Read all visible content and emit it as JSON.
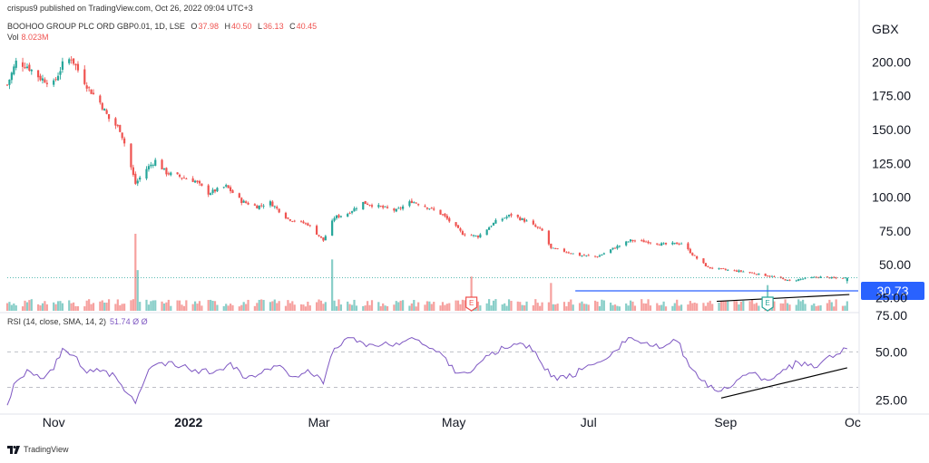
{
  "header": {
    "published": "crispus9 published on TradingView.com, Oct 26, 2022 09:04 UTC+3"
  },
  "symbol": {
    "name": "BOOHOO GROUP PLC ORD GBP0.01, 1D, LSE",
    "ohlc": [
      {
        "label": "O",
        "value": "37.98"
      },
      {
        "label": "H",
        "value": "40.50"
      },
      {
        "label": "L",
        "value": "36.13"
      },
      {
        "label": "C",
        "value": "40.45"
      }
    ]
  },
  "volume": {
    "label": "Vol",
    "value": "8.023M"
  },
  "rsi": {
    "label": "RSI (14, close, SMA, 14, 2)",
    "values": "51.74  Ø  Ø"
  },
  "currency": "GBX",
  "brand": "TradingView",
  "colors": {
    "up": "#26a69a",
    "down": "#ef5350",
    "rsi": "#7e57c2",
    "hline": "#2962ff",
    "trend": "#000000"
  },
  "chart_data": [
    {
      "type": "candlestick",
      "title": "BOOHOO GROUP PLC ORD GBP0.01, 1D, LSE",
      "y_unit": "GBX",
      "ylim": [
        18,
        215
      ],
      "yticks": [
        "200.00",
        "175.00",
        "150.00",
        "125.00",
        "100.00",
        "75.00",
        "50.00",
        "25.00"
      ],
      "xticks": [
        "Nov",
        "2022",
        "Mar",
        "May",
        "Jul",
        "Sep",
        "Oc"
      ],
      "x_range": [
        "2021-10-11",
        "2022-10-31"
      ],
      "close_path": [
        [
          "2021-10-11",
          183
        ],
        [
          "2021-10-15",
          200
        ],
        [
          "2021-10-20",
          197
        ],
        [
          "2021-10-26",
          188
        ],
        [
          "2021-11-01",
          184
        ],
        [
          "2021-11-05",
          198
        ],
        [
          "2021-11-09",
          203
        ],
        [
          "2021-11-12",
          194
        ],
        [
          "2021-11-17",
          180
        ],
        [
          "2021-11-22",
          170
        ],
        [
          "2021-11-26",
          158
        ],
        [
          "2021-12-01",
          150
        ],
        [
          "2021-12-03",
          140
        ],
        [
          "2021-12-08",
          110
        ],
        [
          "2021-12-13",
          121
        ],
        [
          "2021-12-17",
          127
        ],
        [
          "2021-12-22",
          118
        ],
        [
          "2022-01-04",
          112
        ],
        [
          "2022-01-10",
          103
        ],
        [
          "2022-01-18",
          108
        ],
        [
          "2022-01-25",
          97
        ],
        [
          "2022-02-01",
          93
        ],
        [
          "2022-02-07",
          96
        ],
        [
          "2022-02-15",
          84
        ],
        [
          "2022-02-24",
          80
        ],
        [
          "2022-03-03",
          68
        ],
        [
          "2022-03-08",
          85
        ],
        [
          "2022-03-14",
          88
        ],
        [
          "2022-03-21",
          96
        ],
        [
          "2022-03-28",
          93
        ],
        [
          "2022-04-05",
          90
        ],
        [
          "2022-04-12",
          97
        ],
        [
          "2022-04-20",
          92
        ],
        [
          "2022-04-26",
          87
        ],
        [
          "2022-05-05",
          73
        ],
        [
          "2022-05-12",
          71
        ],
        [
          "2022-05-20",
          82
        ],
        [
          "2022-05-27",
          87
        ],
        [
          "2022-06-03",
          82
        ],
        [
          "2022-06-10",
          75
        ],
        [
          "2022-06-14",
          62
        ],
        [
          "2022-06-20",
          60
        ],
        [
          "2022-06-27",
          57
        ],
        [
          "2022-07-05",
          56
        ],
        [
          "2022-07-12",
          62
        ],
        [
          "2022-07-20",
          68
        ],
        [
          "2022-07-28",
          67
        ],
        [
          "2022-08-04",
          65
        ],
        [
          "2022-08-12",
          66
        ],
        [
          "2022-08-18",
          56
        ],
        [
          "2022-08-24",
          48
        ],
        [
          "2022-09-02",
          46
        ],
        [
          "2022-09-09",
          45
        ],
        [
          "2022-09-16",
          43
        ],
        [
          "2022-09-23",
          41
        ],
        [
          "2022-09-30",
          38
        ],
        [
          "2022-10-07",
          40
        ],
        [
          "2022-10-14",
          41
        ],
        [
          "2022-10-21",
          40
        ],
        [
          "2022-10-26",
          40.45
        ]
      ],
      "horizontal_line": {
        "value": 30.73,
        "label": "30.73",
        "from": "2022-06-25"
      },
      "trendline": {
        "from": [
          "2022-08-28",
          23
        ],
        "to": [
          "2022-10-27",
          28
        ]
      },
      "earnings_markers": [
        {
          "date": "2022-05-09",
          "label": "E",
          "kind": "past"
        },
        {
          "date": "2022-09-20",
          "label": "E",
          "kind": "upcoming"
        }
      ]
    },
    {
      "type": "bar",
      "title": "Vol",
      "value": "8.023M",
      "spikes": [
        {
          "date": "2021-12-08",
          "value": 3.6,
          "color": "down"
        },
        {
          "date": "2021-12-09",
          "value": 1.9,
          "color": "up"
        },
        {
          "date": "2022-03-07",
          "value": 2.4,
          "color": "up"
        },
        {
          "date": "2022-05-09",
          "value": 1.6,
          "color": "down"
        },
        {
          "date": "2022-06-14",
          "value": 1.3,
          "color": "down"
        },
        {
          "date": "2022-09-20",
          "value": 1.2,
          "color": "up"
        }
      ]
    },
    {
      "type": "line",
      "title": "RSI (14, close, SMA, 14, 2)",
      "ylim": [
        16,
        68
      ],
      "yticks": [
        "75.00",
        "50.00",
        "25.00"
      ],
      "levels": [
        30,
        50,
        70
      ],
      "series": [
        {
          "name": "RSI",
          "points": [
            [
              "2021-10-11",
              20
            ],
            [
              "2021-10-14",
              32
            ],
            [
              "2021-10-20",
              40
            ],
            [
              "2021-10-26",
              35
            ],
            [
              "2021-11-01",
              40
            ],
            [
              "2021-11-05",
              52
            ],
            [
              "2021-11-10",
              48
            ],
            [
              "2021-11-16",
              38
            ],
            [
              "2021-11-22",
              39
            ],
            [
              "2021-11-29",
              36
            ],
            [
              "2021-12-03",
              28
            ],
            [
              "2021-12-08",
              21
            ],
            [
              "2021-12-14",
              40
            ],
            [
              "2021-12-20",
              44
            ],
            [
              "2022-01-04",
              40
            ],
            [
              "2022-01-12",
              38
            ],
            [
              "2022-01-20",
              44
            ],
            [
              "2022-01-27",
              35
            ],
            [
              "2022-02-03",
              38
            ],
            [
              "2022-02-10",
              42
            ],
            [
              "2022-02-17",
              36
            ],
            [
              "2022-02-24",
              40
            ],
            [
              "2022-03-03",
              32
            ],
            [
              "2022-03-08",
              52
            ],
            [
              "2022-03-14",
              58
            ],
            [
              "2022-03-21",
              55
            ],
            [
              "2022-03-28",
              53
            ],
            [
              "2022-04-05",
              55
            ],
            [
              "2022-04-12",
              58
            ],
            [
              "2022-04-20",
              52
            ],
            [
              "2022-04-26",
              48
            ],
            [
              "2022-05-03",
              38
            ],
            [
              "2022-05-10",
              40
            ],
            [
              "2022-05-17",
              48
            ],
            [
              "2022-05-24",
              52
            ],
            [
              "2022-05-31",
              55
            ],
            [
              "2022-06-07",
              50
            ],
            [
              "2022-06-14",
              36
            ],
            [
              "2022-06-21",
              35
            ],
            [
              "2022-06-28",
              40
            ],
            [
              "2022-07-05",
              44
            ],
            [
              "2022-07-12",
              50
            ],
            [
              "2022-07-19",
              58
            ],
            [
              "2022-07-26",
              55
            ],
            [
              "2022-08-02",
              52
            ],
            [
              "2022-08-10",
              56
            ],
            [
              "2022-08-17",
              40
            ],
            [
              "2022-08-24",
              30
            ],
            [
              "2022-08-30",
              28
            ],
            [
              "2022-09-06",
              34
            ],
            [
              "2022-09-13",
              38
            ],
            [
              "2022-09-20",
              34
            ],
            [
              "2022-09-27",
              40
            ],
            [
              "2022-10-04",
              44
            ],
            [
              "2022-10-11",
              41
            ],
            [
              "2022-10-18",
              48
            ],
            [
              "2022-10-26",
              51.74
            ]
          ]
        }
      ],
      "trendline": {
        "from": [
          "2022-08-30",
          24
        ],
        "to": [
          "2022-10-26",
          41
        ]
      }
    }
  ]
}
